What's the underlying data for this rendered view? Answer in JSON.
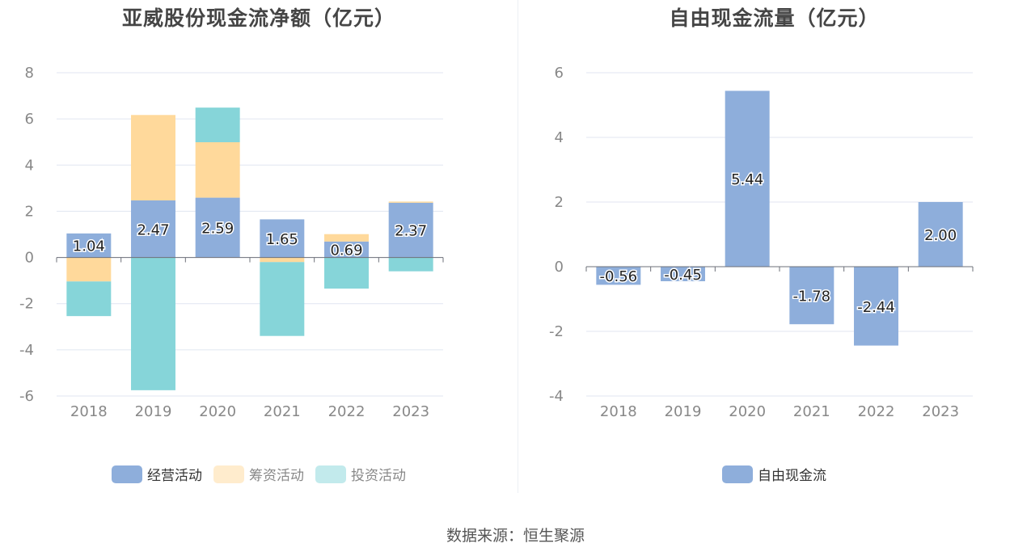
{
  "charts": {
    "left_title": "亚威股份现金流净额（亿元）",
    "right_title": "自由现金流量（亿元）"
  },
  "source": "数据来源：恒生聚源",
  "colors": {
    "operating": "#8eaedb",
    "financing": "#ffd99b",
    "investing": "#86d5d9",
    "free_cash_flow": "#8eaedb"
  },
  "chart_data": [
    {
      "type": "bar",
      "stacked": true,
      "title": "亚威股份现金流净额（亿元）",
      "categories": [
        "2018",
        "2019",
        "2020",
        "2021",
        "2022",
        "2023"
      ],
      "series": [
        {
          "name": "经营活动",
          "values": [
            1.04,
            2.47,
            2.59,
            1.65,
            0.69,
            2.37
          ],
          "labeled": true
        },
        {
          "name": "筹资活动",
          "values": [
            -1.04,
            3.7,
            2.4,
            -0.2,
            0.32,
            0.05
          ]
        },
        {
          "name": "投资活动",
          "values": [
            -1.5,
            -5.75,
            1.5,
            -3.2,
            -1.35,
            -0.6
          ]
        }
      ],
      "ylim": [
        -6,
        8
      ],
      "yticks": [
        8,
        6,
        4,
        2,
        0,
        -2,
        -4,
        -6
      ],
      "grid": true,
      "legend": "bottom"
    },
    {
      "type": "bar",
      "title": "自由现金流量（亿元）",
      "categories": [
        "2018",
        "2019",
        "2020",
        "2021",
        "2022",
        "2023"
      ],
      "series": [
        {
          "name": "自由现金流",
          "values": [
            -0.56,
            -0.45,
            5.44,
            -1.78,
            -2.44,
            2.0
          ],
          "labeled": true
        }
      ],
      "ylim": [
        -4,
        6
      ],
      "yticks": [
        6,
        4,
        2,
        0,
        -2,
        -4
      ],
      "grid": true,
      "legend": "bottom"
    }
  ]
}
